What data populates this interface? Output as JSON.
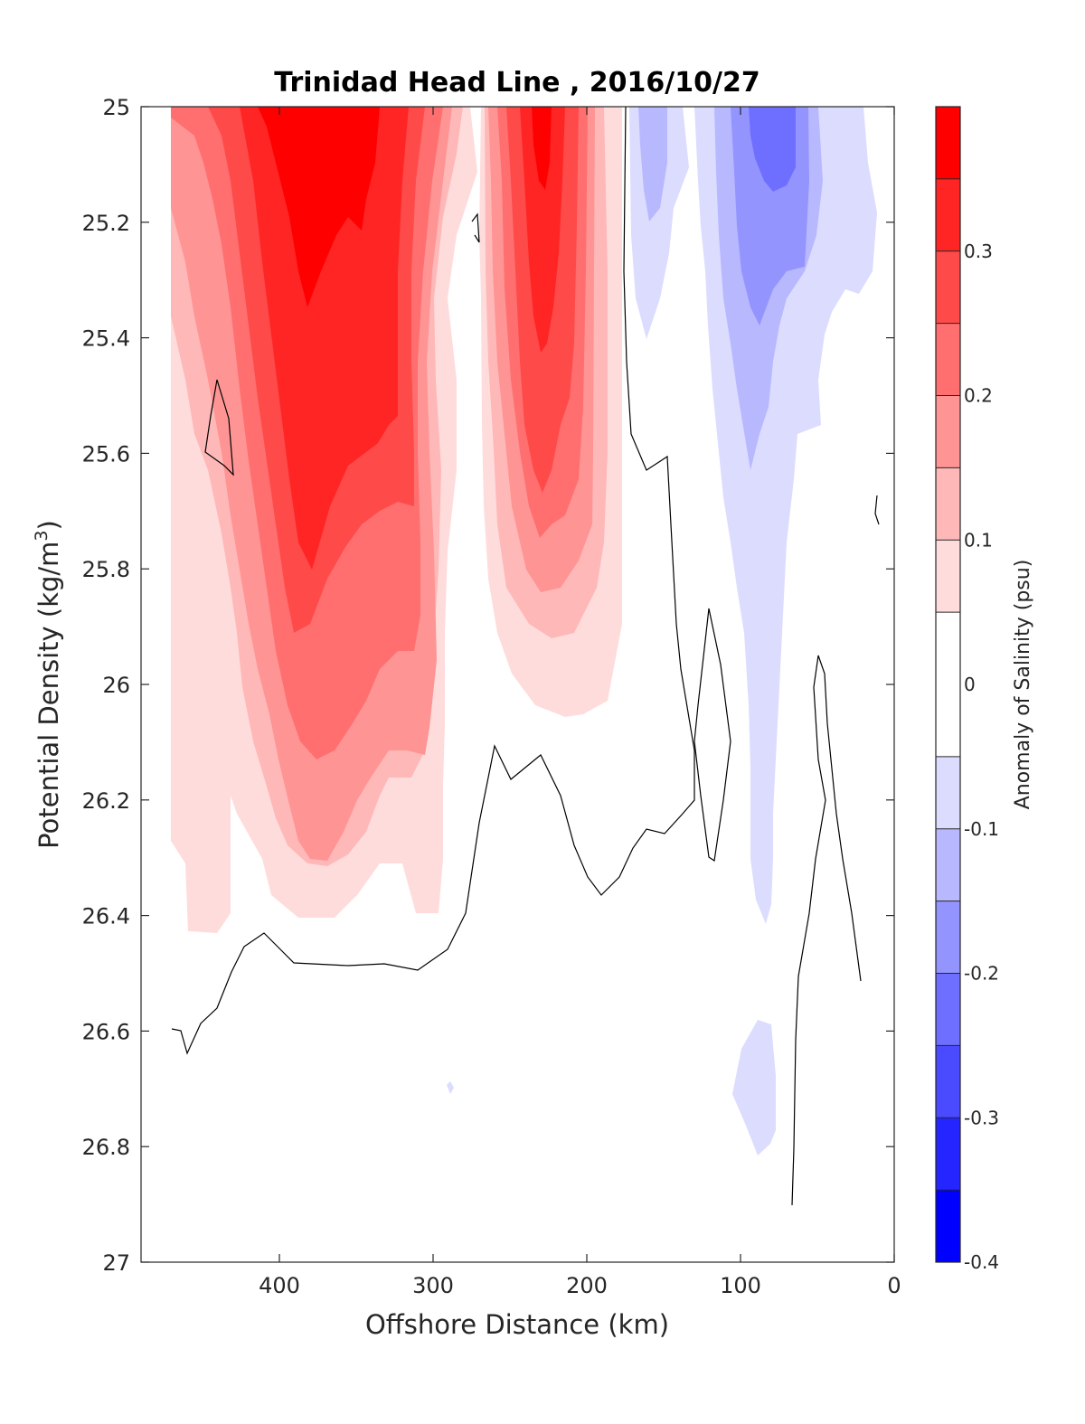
{
  "chart_data": {
    "type": "heatmap",
    "title": "Trinidad Head Line , 2016/10/27",
    "xlabel": "Offshore Distance (km)",
    "ylabel_main": "Potential Density (kg/m",
    "ylabel_sup": "3",
    "ylabel_close": ")",
    "xlim": [
      490,
      0
    ],
    "ylim": [
      25,
      27
    ],
    "y_reversed": true,
    "xticks": [
      400,
      300,
      200,
      100,
      0
    ],
    "yticks": [
      25,
      25.2,
      25.4,
      25.6,
      25.8,
      26,
      26.2,
      26.4,
      26.6,
      26.8,
      27
    ],
    "colorbar": {
      "label": "Anomaly of Salinity (psu)",
      "range": [
        -0.4,
        0.4
      ],
      "levels": [
        -0.4,
        -0.35,
        -0.3,
        -0.25,
        -0.2,
        -0.15,
        -0.1,
        -0.05,
        0.05,
        0.1,
        0.15,
        0.2,
        0.25,
        0.3,
        0.35,
        0.4
      ],
      "ticks": [
        -0.4,
        -0.3,
        -0.2,
        -0.1,
        0,
        0.1,
        0.2,
        0.3
      ],
      "colors": [
        "#0000ff",
        "#2525ff",
        "#4a4aff",
        "#6f6fff",
        "#9494ff",
        "#b8b8ff",
        "#dcdcff",
        "#ffffff",
        "#ffdcdc",
        "#ffb8b8",
        "#ff9494",
        "#ff6f6f",
        "#ff4a4a",
        "#ff2525",
        "#ff0000"
      ]
    },
    "grid": false,
    "legend": "colorbar-right",
    "contour_line_level": 0
  }
}
